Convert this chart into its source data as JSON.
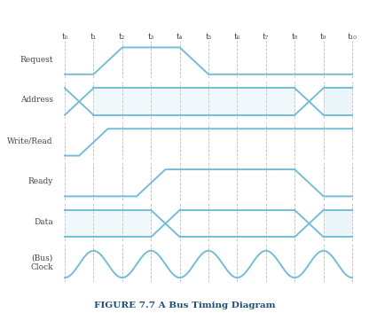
{
  "title": "FIGURE 7.7 A Bus Timing Diagram",
  "signal_labels": [
    "Request",
    "Address",
    "Write/Read",
    "Ready",
    "Data",
    "(Bus)\nClock"
  ],
  "time_labels": [
    "t₀",
    "t₁",
    "t₂",
    "t₃",
    "t₄",
    "t₅",
    "t₆",
    "t₇",
    "t₈",
    "t₉",
    "t₁₀"
  ],
  "num_intervals": 10,
  "line_color": "#74BDD6",
  "fill_color": "#C8E6F4",
  "bg_color": "#FFFFFF",
  "dashed_color": "#BBBBBB",
  "title_color": "#1F4E79",
  "label_color": "#444444",
  "slope": 0.3
}
